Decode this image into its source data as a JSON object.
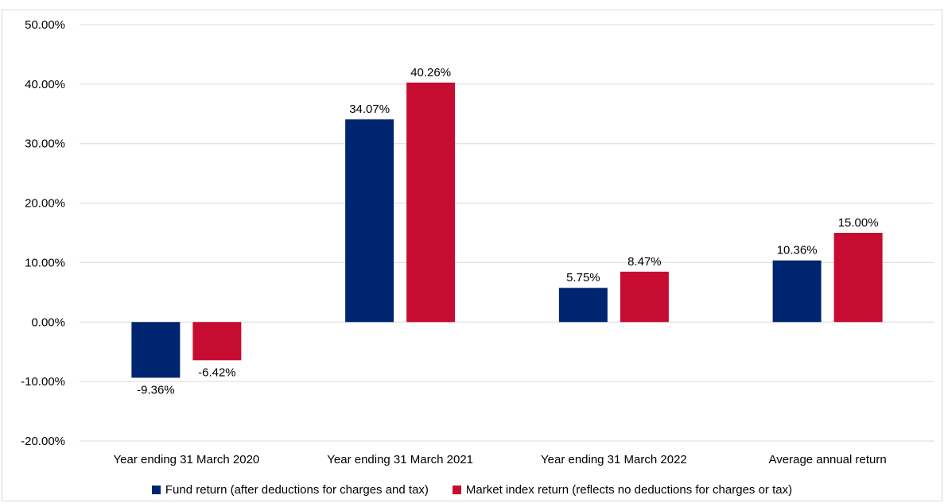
{
  "chart_data": {
    "type": "bar",
    "categories": [
      "Year ending 31 March 2020",
      "Year ending 31 March 2021",
      "Year ending 31 March 2022",
      "Average annual return"
    ],
    "series": [
      {
        "name": "Fund return (after deductions for charges and tax)",
        "color": "#002570",
        "values": [
          -9.36,
          34.07,
          5.75,
          10.36
        ],
        "labels": [
          "-9.36%",
          "34.07%",
          "5.75%",
          "10.36%"
        ]
      },
      {
        "name": "Market index return (reflects no deductions for charges or tax)",
        "color": "#c60c30",
        "values": [
          -6.42,
          40.26,
          8.47,
          15.0
        ],
        "labels": [
          "-6.42%",
          "40.26%",
          "8.47%",
          "15.00%"
        ]
      }
    ],
    "yticks": [
      50,
      40,
      30,
      20,
      10,
      0,
      -10,
      -20
    ],
    "ytick_labels": [
      "50.00%",
      "40.00%",
      "30.00%",
      "20.00%",
      "10.00%",
      "0.00%",
      "-10.00%",
      "-20.00%"
    ],
    "ylim": [
      -20,
      50
    ],
    "grid": true,
    "legend_position": "bottom"
  }
}
